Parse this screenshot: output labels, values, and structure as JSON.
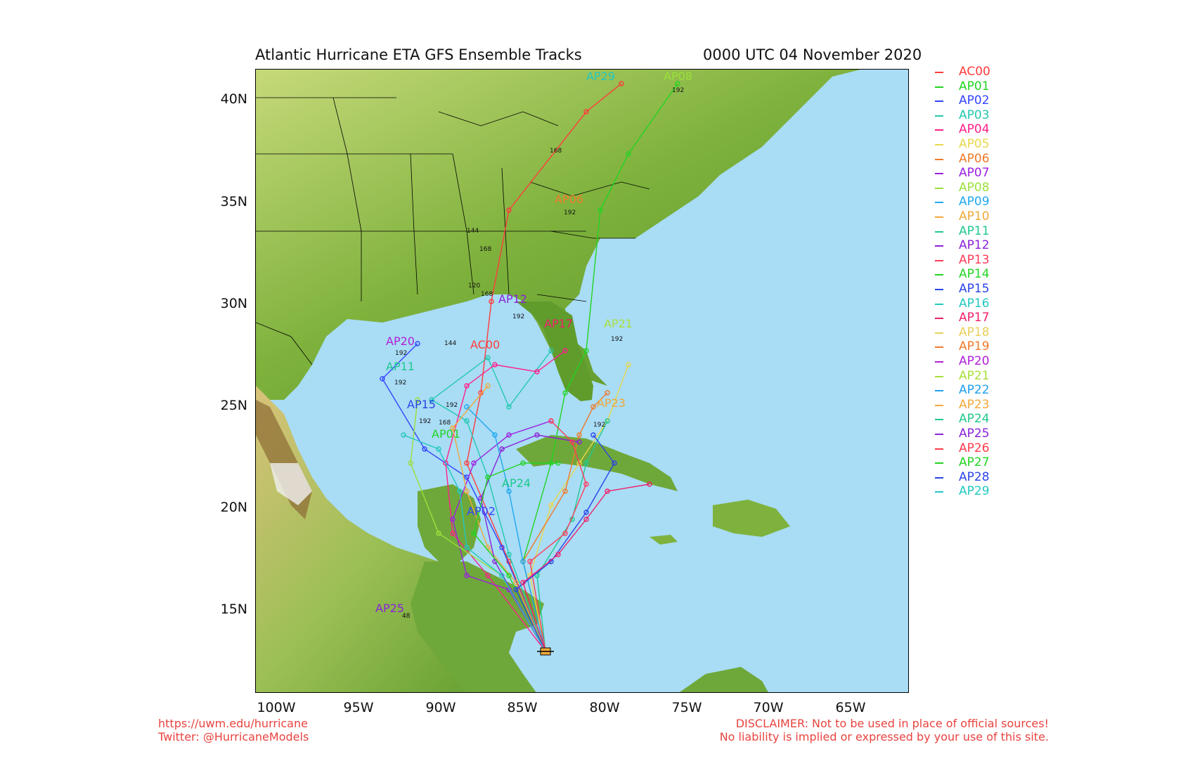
{
  "header": {
    "title": "Atlantic Hurricane ETA GFS Ensemble Tracks",
    "timestamp": "0000 UTC 04 November 2020"
  },
  "axes": {
    "lat_labels": [
      "40N",
      "35N",
      "30N",
      "25N",
      "20N",
      "15N"
    ],
    "lon_labels": [
      "100W",
      "95W",
      "90W",
      "85W",
      "80W",
      "75W",
      "70W",
      "65W"
    ]
  },
  "colors": {
    "ocean": "#a9dcf5",
    "land_low": "#5f9c2c",
    "land_mid": "#b8d06a",
    "mountain": "#7a5a2a",
    "state_lines": "#000000"
  },
  "legend": [
    {
      "name": "AC00",
      "color": "#ff3b3b"
    },
    {
      "name": "AP01",
      "color": "#22d422"
    },
    {
      "name": "AP02",
      "color": "#3344ff"
    },
    {
      "name": "AP03",
      "color": "#22c8b0"
    },
    {
      "name": "AP04",
      "color": "#ff1f8a"
    },
    {
      "name": "AP05",
      "color": "#e8d84a"
    },
    {
      "name": "AP06",
      "color": "#f07a2a"
    },
    {
      "name": "AP07",
      "color": "#9b1fe0"
    },
    {
      "name": "AP08",
      "color": "#9be03a"
    },
    {
      "name": "AP09",
      "color": "#1fa8f0"
    },
    {
      "name": "AP10",
      "color": "#f0a83a"
    },
    {
      "name": "AP11",
      "color": "#1fc890"
    },
    {
      "name": "AP12",
      "color": "#8a22d8"
    },
    {
      "name": "AP13",
      "color": "#ff3b5a"
    },
    {
      "name": "AP14",
      "color": "#22d422"
    },
    {
      "name": "AP15",
      "color": "#2a44e8"
    },
    {
      "name": "AP16",
      "color": "#22c8c0"
    },
    {
      "name": "AP17",
      "color": "#f01f6a"
    },
    {
      "name": "AP18",
      "color": "#e8d05a"
    },
    {
      "name": "AP19",
      "color": "#f07a2a"
    },
    {
      "name": "AP20",
      "color": "#b01fd8"
    },
    {
      "name": "AP21",
      "color": "#a8e03a"
    },
    {
      "name": "AP22",
      "color": "#1fa0f0"
    },
    {
      "name": "AP23",
      "color": "#f0a83a"
    },
    {
      "name": "AP24",
      "color": "#1fc88a"
    },
    {
      "name": "AP25",
      "color": "#8a22d8"
    },
    {
      "name": "AP26",
      "color": "#ff3b4a"
    },
    {
      "name": "AP27",
      "color": "#22d422"
    },
    {
      "name": "AP28",
      "color": "#2a44e8"
    },
    {
      "name": "AP29",
      "color": "#22c8c0"
    }
  ],
  "track_labels": [
    {
      "text": "AP29",
      "color": "#22c8c0"
    },
    {
      "text": "AP08",
      "color": "#9be03a"
    },
    {
      "text": "AP06",
      "color": "#f07a2a"
    },
    {
      "text": "AP12",
      "color": "#8a22d8"
    },
    {
      "text": "AP17",
      "color": "#f01f6a"
    },
    {
      "text": "AP21",
      "color": "#a8e03a"
    },
    {
      "text": "AP20",
      "color": "#b01fd8"
    },
    {
      "text": "AC00",
      "color": "#ff3b3b"
    },
    {
      "text": "AP11",
      "color": "#1fc890"
    },
    {
      "text": "AP15",
      "color": "#2a44e8"
    },
    {
      "text": "AP23",
      "color": "#f0a83a"
    },
    {
      "text": "AP01",
      "color": "#22d422"
    },
    {
      "text": "AP02",
      "color": "#3344ff"
    },
    {
      "text": "AP24",
      "color": "#1fc88a"
    },
    {
      "text": "AP25",
      "color": "#8a22d8"
    }
  ],
  "hour_labels": [
    "192",
    "168",
    "192",
    "144",
    "168",
    "120",
    "168",
    "192",
    "192",
    "144",
    "192",
    "192",
    "192",
    "168",
    "192",
    "192",
    "48"
  ],
  "footer": {
    "url": "https://uwm.edu/hurricane",
    "twitter": "Twitter: @HurricaneModels",
    "disclaimer1": "DISCLAIMER: Not to be used in place of official sources!",
    "disclaimer2": "No liability is implied or expressed by your use of this site."
  }
}
